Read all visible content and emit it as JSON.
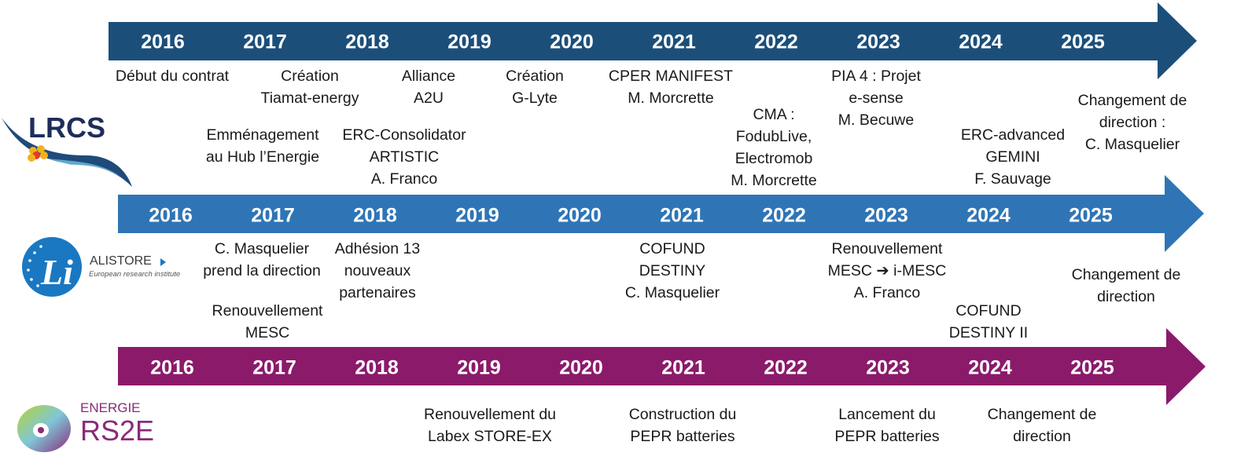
{
  "colors": {
    "lrcs_arrow": "#1b4f7a",
    "alistore_arrow": "#2f75b5",
    "rs2e_arrow": "#8b1a6b",
    "year_text": "#ffffff"
  },
  "logos": {
    "lrcs": {
      "name": "LRCS"
    },
    "alistore": {
      "name": "ALISTORE",
      "subtitle": "European research institute",
      "mark": "Li"
    },
    "rs2e": {
      "top": "ENERGIE",
      "name": "RS2E"
    }
  },
  "timelines": {
    "lrcs": {
      "years": [
        "2016",
        "2017",
        "2018",
        "2019",
        "2020",
        "2021",
        "2022",
        "2023",
        "2024",
        "2025"
      ],
      "events": [
        {
          "lines": [
            "Début du contrat"
          ]
        },
        {
          "lines": [
            "Création",
            "Tiamat-energy"
          ]
        },
        {
          "lines": [
            "Emménagement",
            "au Hub l’Energie"
          ]
        },
        {
          "lines": [
            "Alliance",
            "A2U"
          ]
        },
        {
          "lines": [
            "ERC-Consolidator",
            "ARTISTIC",
            "A. Franco"
          ]
        },
        {
          "lines": [
            "Création",
            "G-Lyte"
          ]
        },
        {
          "lines": [
            "CPER MANIFEST",
            "M. Morcrette"
          ]
        },
        {
          "lines": [
            "CMA :",
            "FodubLive,",
            "Electromob",
            "M. Morcrette"
          ]
        },
        {
          "lines": [
            "PIA 4 : Projet",
            "e-sense",
            "M. Becuwe"
          ]
        },
        {
          "lines": [
            "ERC-advanced",
            "GEMINI",
            "F. Sauvage"
          ]
        },
        {
          "lines": [
            "Changement de",
            "direction  :",
            "C. Masquelier"
          ]
        }
      ]
    },
    "alistore": {
      "years": [
        "2016",
        "2017",
        "2018",
        "2019",
        "2020",
        "2021",
        "2022",
        "2023",
        "2024",
        "2025"
      ],
      "events": [
        {
          "lines": [
            "C. Masquelier",
            "prend la direction"
          ]
        },
        {
          "lines": [
            "Renouvellement",
            "MESC"
          ]
        },
        {
          "lines": [
            "Adhésion 13",
            "nouveaux",
            "partenaires"
          ]
        },
        {
          "lines": [
            "COFUND",
            "DESTINY",
            "C. Masquelier"
          ]
        },
        {
          "lines": [
            "Renouvellement",
            "MESC ➔ i-MESC",
            "A. Franco"
          ]
        },
        {
          "lines": [
            "COFUND",
            "DESTINY II"
          ]
        },
        {
          "lines": [
            "Changement de",
            "direction"
          ]
        }
      ]
    },
    "rs2e": {
      "years": [
        "2016",
        "2017",
        "2018",
        "2019",
        "2020",
        "2021",
        "2022",
        "2023",
        "2024",
        "2025"
      ],
      "events": [
        {
          "lines": [
            "Renouvellement  du",
            "Labex STORE-EX"
          ]
        },
        {
          "lines": [
            "Construction du",
            "PEPR batteries"
          ]
        },
        {
          "lines": [
            "Lancement du",
            "PEPR batteries"
          ]
        },
        {
          "lines": [
            "Changement de",
            "direction"
          ]
        }
      ]
    }
  }
}
